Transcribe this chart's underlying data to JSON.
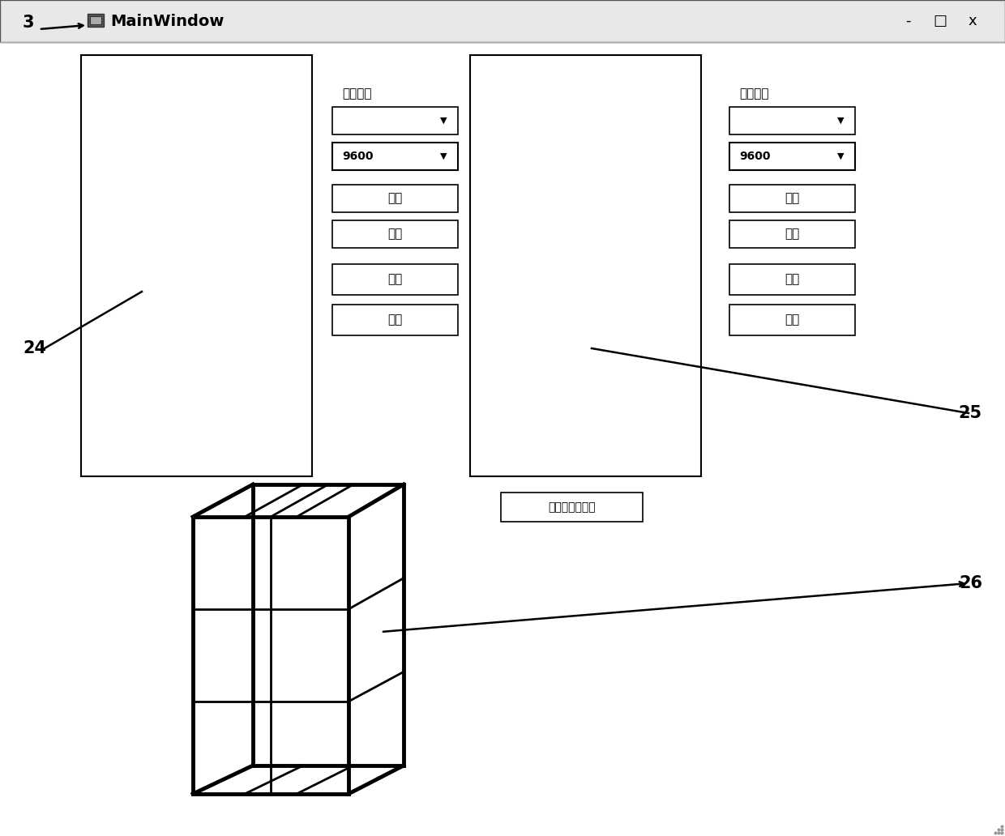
{
  "bg_color": "#ffffff",
  "title_bar_text": "MainWindow",
  "label_3": "3",
  "label_24": "24",
  "label_25": "25",
  "label_26": "26",
  "serial_label": "串口状态",
  "btn_open": "打开",
  "btn_close": "关闭",
  "btn_scan": "扫描",
  "btn_clear": "清除",
  "baud_rate": "9600",
  "motion_label": "运动状态提示框"
}
